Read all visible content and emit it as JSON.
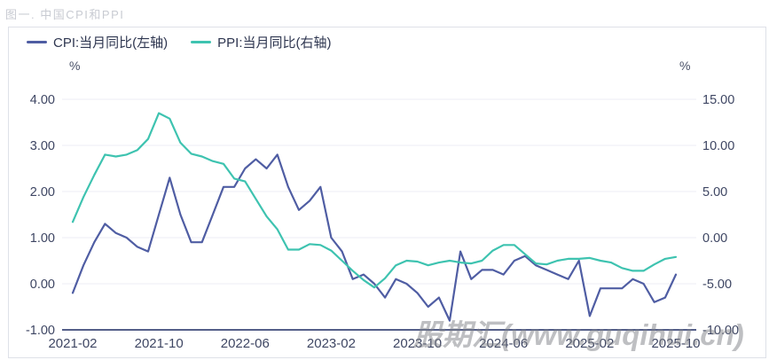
{
  "title": "图一. 中国CPI和PPI",
  "legend": [
    {
      "label": "CPI:当月同比(左轴)",
      "color": "#4f5da3"
    },
    {
      "label": "PPI:当月同比(右轴)",
      "color": "#3ec3b0"
    }
  ],
  "left_axis": {
    "unit": "%",
    "ticks": [
      "4.00",
      "3.00",
      "2.00",
      "1.00",
      "0.00",
      "-1.00"
    ]
  },
  "right_axis": {
    "unit": "%",
    "ticks": [
      "15.00",
      "10.00",
      "5.00",
      "0.00",
      "-5.00",
      "-10.00"
    ]
  },
  "x_axis_ticks_shown": [
    "2021-02",
    "2021-10",
    "2022-06",
    "2023-02",
    "2023-10",
    "2024-06",
    "2025-02",
    "2025-10"
  ],
  "watermark": "股期汇(www.guqihui.cn)",
  "colors": {
    "cpi_line": "#4f5da3",
    "ppi_line": "#3ec3b0",
    "gridline": "#eceef5",
    "axis_line": "#3d4878",
    "tick_text": "#3e4663"
  },
  "chart_data": {
    "type": "line",
    "title": "图一. 中国CPI和PPI",
    "legend_position": "top-left",
    "grid": true,
    "x": [
      "2021-02",
      "2021-03",
      "2021-04",
      "2021-05",
      "2021-06",
      "2021-07",
      "2021-08",
      "2021-09",
      "2021-10",
      "2021-11",
      "2021-12",
      "2022-01",
      "2022-02",
      "2022-03",
      "2022-04",
      "2022-05",
      "2022-06",
      "2022-07",
      "2022-08",
      "2022-09",
      "2022-10",
      "2022-11",
      "2022-12",
      "2023-01",
      "2023-02",
      "2023-03",
      "2023-04",
      "2023-05",
      "2023-06",
      "2023-07",
      "2023-08",
      "2023-09",
      "2023-10",
      "2023-11",
      "2023-12",
      "2024-01",
      "2024-02",
      "2024-03",
      "2024-04",
      "2024-05",
      "2024-06",
      "2024-07",
      "2024-08",
      "2024-09",
      "2024-10",
      "2024-11",
      "2024-12",
      "2025-01",
      "2025-02",
      "2025-03",
      "2025-04",
      "2025-05",
      "2025-06",
      "2025-07",
      "2025-08",
      "2025-09",
      "2025-10"
    ],
    "x_tick_every": 8,
    "left_ylim": [
      -1,
      4
    ],
    "right_ylim": [
      -10,
      15
    ],
    "left_yticks": [
      4,
      3,
      2,
      1,
      0,
      -1
    ],
    "right_yticks": [
      15,
      10,
      5,
      0,
      -5,
      -10
    ],
    "ylabel_left": "%",
    "ylabel_right": "%",
    "series": [
      {
        "name": "CPI:当月同比(左轴)",
        "axis": "left",
        "color": "#4f5da3",
        "values": [
          -0.2,
          0.4,
          0.9,
          1.3,
          1.1,
          1.0,
          0.8,
          0.7,
          1.5,
          2.3,
          1.5,
          0.9,
          0.9,
          1.5,
          2.1,
          2.1,
          2.5,
          2.7,
          2.5,
          2.8,
          2.1,
          1.6,
          1.8,
          2.1,
          1.0,
          0.7,
          0.1,
          0.2,
          0.0,
          -0.3,
          0.1,
          0.0,
          -0.2,
          -0.5,
          -0.3,
          -0.8,
          0.7,
          0.1,
          0.3,
          0.3,
          0.2,
          0.5,
          0.6,
          0.4,
          0.3,
          0.2,
          0.1,
          0.5,
          -0.7,
          -0.1,
          -0.1,
          -0.1,
          0.1,
          0.0,
          -0.4,
          -0.3,
          0.2
        ]
      },
      {
        "name": "PPI:当月同比(右轴)",
        "axis": "right",
        "color": "#3ec3b0",
        "values": [
          1.7,
          4.4,
          6.8,
          9.0,
          8.8,
          9.0,
          9.5,
          10.7,
          13.5,
          12.9,
          10.3,
          9.1,
          8.8,
          8.3,
          8.0,
          6.4,
          6.1,
          4.2,
          2.3,
          0.9,
          -1.3,
          -1.3,
          -0.7,
          -0.8,
          -1.4,
          -2.5,
          -3.6,
          -4.6,
          -5.4,
          -4.4,
          -3.0,
          -2.5,
          -2.6,
          -3.0,
          -2.7,
          -2.5,
          -2.7,
          -2.8,
          -2.5,
          -1.4,
          -0.8,
          -0.8,
          -1.8,
          -2.8,
          -2.9,
          -2.5,
          -2.3,
          -2.3,
          -2.2,
          -2.5,
          -2.7,
          -3.3,
          -3.6,
          -3.6,
          -2.9,
          -2.3,
          -2.1
        ]
      }
    ]
  }
}
